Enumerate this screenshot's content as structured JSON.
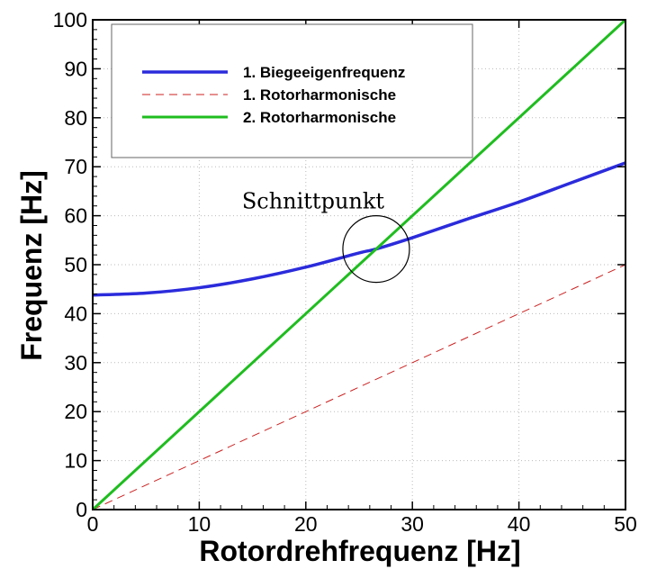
{
  "chart_data": {
    "type": "line",
    "xlabel": "Rotordrehfrequenz  [Hz]",
    "ylabel": "Frequenz [Hz]",
    "xlim": [
      0,
      50
    ],
    "ylim": [
      0,
      100
    ],
    "xticks": [
      0,
      10,
      20,
      30,
      40,
      50
    ],
    "yticks": [
      0,
      10,
      20,
      30,
      40,
      50,
      60,
      70,
      80,
      90,
      100
    ],
    "grid": true,
    "legend_position": "top-left",
    "series": [
      {
        "name": "1. Biegeeigenfrequenz",
        "color": "#2b2bdc",
        "style": "solid",
        "x": [
          0,
          5,
          10,
          15,
          20,
          25,
          26.6,
          30,
          35,
          40,
          45,
          50
        ],
        "y": [
          43.8,
          44.2,
          45.3,
          47.1,
          49.5,
          52.4,
          53.2,
          55.5,
          59.2,
          62.8,
          66.8,
          70.8
        ]
      },
      {
        "name": "1. Rotorharmonische",
        "color": "#cc2020",
        "style": "dashed",
        "x": [
          0,
          50
        ],
        "y": [
          0,
          50
        ]
      },
      {
        "name": "2. Rotorharmonische",
        "color": "#1fbd1f",
        "style": "solid",
        "x": [
          0,
          50
        ],
        "y": [
          0,
          100
        ]
      }
    ],
    "annotation": {
      "text": "Schnittpunkt",
      "x": 26.6,
      "y": 53.2
    }
  }
}
